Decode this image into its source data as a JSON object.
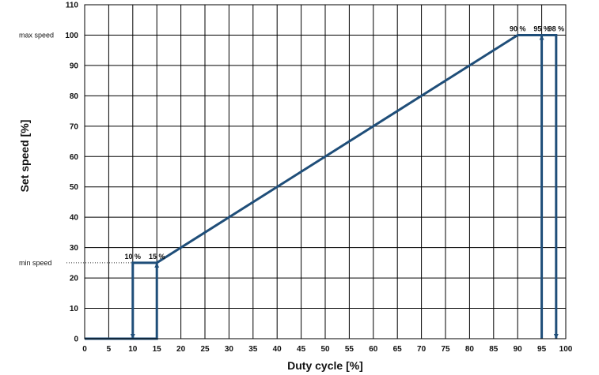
{
  "chart_data": {
    "type": "line",
    "xlabel": "Duty cycle [%]",
    "ylabel": "Set speed [%]",
    "xlim": [
      0,
      100
    ],
    "ylim": [
      0,
      110
    ],
    "x_ticks": [
      0,
      5,
      10,
      15,
      20,
      25,
      30,
      35,
      40,
      45,
      50,
      55,
      60,
      65,
      70,
      75,
      80,
      85,
      90,
      95,
      100
    ],
    "y_ticks": [
      0,
      10,
      20,
      30,
      40,
      50,
      60,
      70,
      80,
      90,
      100,
      110
    ],
    "grid": true,
    "line_color": "#1f4e79",
    "series": [
      {
        "x": [
          0,
          10,
          15,
          90,
          95,
          98
        ],
        "y": [
          0,
          0,
          25,
          100,
          100,
          0
        ]
      }
    ],
    "annotations": {
      "y_markers": [
        {
          "label": "max speed",
          "y": 100
        },
        {
          "label": "min speed",
          "y": 25
        }
      ],
      "point_labels": [
        {
          "text": "10 %",
          "x": 10,
          "y": 25
        },
        {
          "text": "15 %",
          "x": 15,
          "y": 25
        },
        {
          "text": "90 %",
          "x": 90,
          "y": 100
        },
        {
          "text": "95 %",
          "x": 95,
          "y": 100
        },
        {
          "text": "98 %",
          "x": 98,
          "y": 100
        }
      ]
    }
  }
}
